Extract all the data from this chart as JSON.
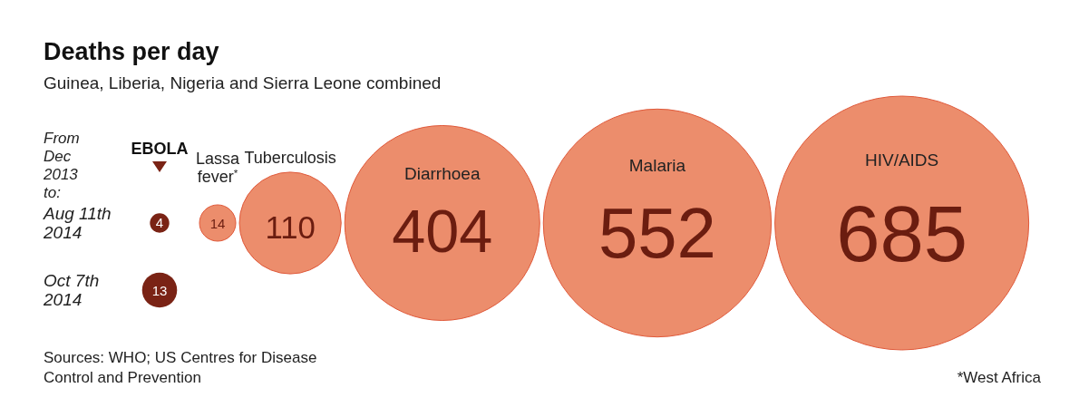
{
  "chart_data": {
    "type": "other",
    "title": "Deaths per day",
    "subtitle": "Guinea, Liberia, Nigeria and Sierra Leone combined",
    "categories": [
      "Aug 11th 2014",
      "Oct 7th 2014",
      "Lassa fever$^{*}$",
      "Tuberculosis",
      "Diarrhoea",
      "Malaria",
      "HIV/AIDS"
    ],
    "values": [
      4,
      13,
      14,
      110,
      404,
      552,
      685
    ],
    "colors": [
      "#7a2315",
      "#7a2315",
      "#ec8d6c",
      "#ec8d6c",
      "#ec8d6c",
      "#ec8d6c",
      "#ec8d6c"
    ],
    "data_labels": true,
    "annotations": [
      "From Dec 2013 to:",
      "EBOLA",
      "Sources: WHO; US Centres for Disease Control and Prevention",
      "*West Africa"
    ]
  }
}
